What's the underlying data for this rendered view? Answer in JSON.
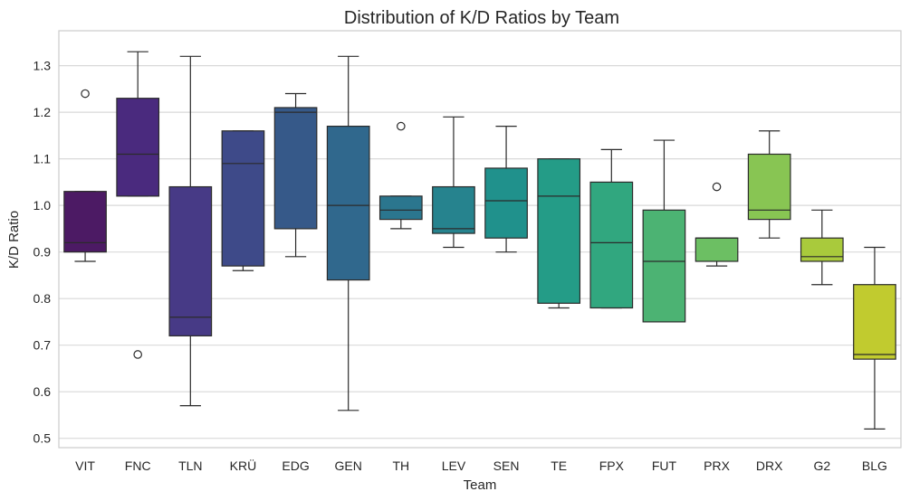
{
  "chart_data": {
    "type": "box",
    "title": "Distribution of K/D Ratios by Team",
    "xlabel": "Team",
    "ylabel": "K/D Ratio",
    "ylim": [
      0.48,
      1.375
    ],
    "yticks": [
      "0.5",
      "0.6",
      "0.7",
      "0.8",
      "0.9",
      "1.0",
      "1.1",
      "1.2",
      "1.3"
    ],
    "grid": "horizontal",
    "palette": "viridis",
    "categories": [
      {
        "name": "VIT",
        "color": "#4c1a64",
        "whisker_low": 0.88,
        "q1": 0.9,
        "median": 0.92,
        "q3": 1.03,
        "whisker_high": 1.03,
        "fliers": [
          1.24
        ]
      },
      {
        "name": "FNC",
        "color": "#4a2a7e",
        "whisker_low": 1.02,
        "q1": 1.02,
        "median": 1.11,
        "q3": 1.23,
        "whisker_high": 1.33,
        "fliers": [
          0.68
        ]
      },
      {
        "name": "TLN",
        "color": "#473a86",
        "whisker_low": 0.57,
        "q1": 0.72,
        "median": 0.76,
        "q3": 1.04,
        "whisker_high": 1.32,
        "fliers": []
      },
      {
        "name": "KRÜ",
        "color": "#3e4a89",
        "whisker_low": 0.86,
        "q1": 0.87,
        "median": 1.09,
        "q3": 1.16,
        "whisker_high": 1.16,
        "fliers": []
      },
      {
        "name": "EDG",
        "color": "#365989",
        "whisker_low": 0.89,
        "q1": 0.95,
        "median": 1.2,
        "q3": 1.21,
        "whisker_high": 1.24,
        "fliers": []
      },
      {
        "name": "GEN",
        "color": "#30688d",
        "whisker_low": 0.56,
        "q1": 0.84,
        "median": 1.0,
        "q3": 1.17,
        "whisker_high": 1.32,
        "fliers": []
      },
      {
        "name": "TH",
        "color": "#2b768e",
        "whisker_low": 0.95,
        "q1": 0.97,
        "median": 0.99,
        "q3": 1.02,
        "whisker_high": 1.02,
        "fliers": [
          1.17
        ]
      },
      {
        "name": "LEV",
        "color": "#26838e",
        "whisker_low": 0.91,
        "q1": 0.94,
        "median": 0.95,
        "q3": 1.04,
        "whisker_high": 1.19,
        "fliers": []
      },
      {
        "name": "SEN",
        "color": "#20918c",
        "whisker_low": 0.9,
        "q1": 0.93,
        "median": 1.01,
        "q3": 1.08,
        "whisker_high": 1.17,
        "fliers": []
      },
      {
        "name": "TE",
        "color": "#249c87",
        "whisker_low": 0.78,
        "q1": 0.79,
        "median": 1.02,
        "q3": 1.1,
        "whisker_high": 1.1,
        "fliers": []
      },
      {
        "name": "FPX",
        "color": "#31a77f",
        "whisker_low": 0.78,
        "q1": 0.78,
        "median": 0.92,
        "q3": 1.05,
        "whisker_high": 1.12,
        "fliers": []
      },
      {
        "name": "FUT",
        "color": "#4cb373",
        "whisker_low": 0.75,
        "q1": 0.75,
        "median": 0.88,
        "q3": 0.99,
        "whisker_high": 1.14,
        "fliers": []
      },
      {
        "name": "PRX",
        "color": "#6cbf63",
        "whisker_low": 0.87,
        "q1": 0.88,
        "median": 0.93,
        "q3": 0.93,
        "whisker_high": 0.93,
        "fliers": [
          1.04
        ]
      },
      {
        "name": "DRX",
        "color": "#88c553",
        "whisker_low": 0.93,
        "q1": 0.97,
        "median": 0.99,
        "q3": 1.11,
        "whisker_high": 1.16,
        "fliers": []
      },
      {
        "name": "G2",
        "color": "#a9ca3c",
        "whisker_low": 0.83,
        "q1": 0.88,
        "median": 0.89,
        "q3": 0.93,
        "whisker_high": 0.99,
        "fliers": []
      },
      {
        "name": "BLG",
        "color": "#c1cb2f",
        "whisker_low": 0.52,
        "q1": 0.67,
        "median": 0.68,
        "q3": 0.83,
        "whisker_high": 0.91,
        "fliers": []
      }
    ]
  }
}
